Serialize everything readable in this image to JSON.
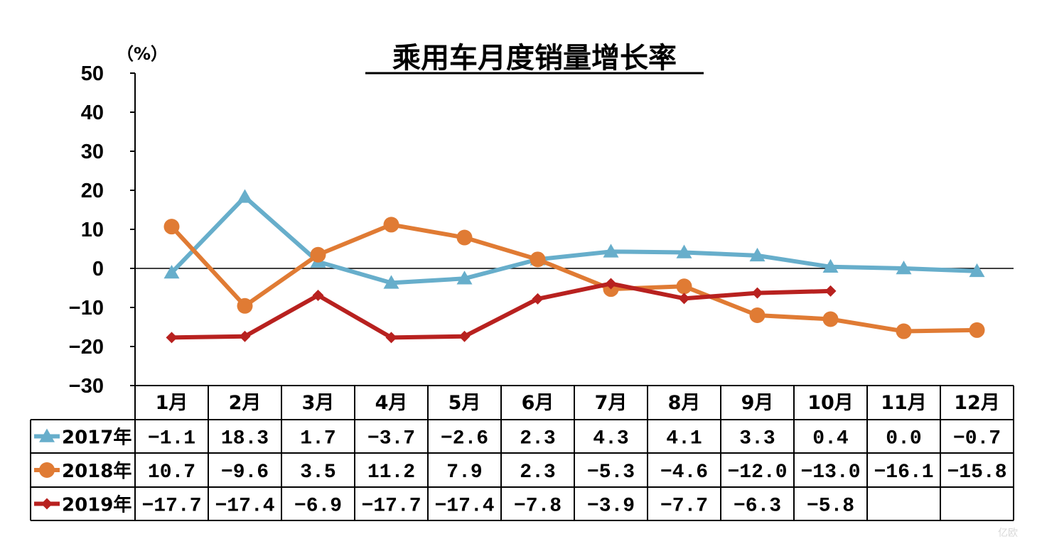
{
  "chart_data": {
    "type": "line",
    "title": "乘用车月度销量增长率",
    "y_unit": "（%）",
    "ylim": [
      -30,
      50
    ],
    "yticks": [
      50,
      40,
      30,
      20,
      10,
      0,
      -10,
      -20,
      -30
    ],
    "grid": false,
    "legend": "table-left",
    "categories": [
      "1月",
      "2月",
      "3月",
      "4月",
      "5月",
      "6月",
      "7月",
      "8月",
      "9月",
      "10月",
      "11月",
      "12月"
    ],
    "series": [
      {
        "name": "2017年",
        "color": "#67aecb",
        "marker": "triangle",
        "values": [
          -1.1,
          18.3,
          1.7,
          -3.7,
          -2.6,
          2.3,
          4.3,
          4.1,
          3.3,
          0.4,
          0.0,
          -0.7
        ],
        "labels": [
          "−1.1",
          "18.3",
          "1.7",
          "−3.7",
          "−2.6",
          "2.3",
          "4.3",
          "4.1",
          "3.3",
          "0.4",
          "0.0",
          "−0.7"
        ]
      },
      {
        "name": "2018年",
        "color": "#e07b34",
        "marker": "circle",
        "values": [
          10.7,
          -9.6,
          3.5,
          11.2,
          7.9,
          2.3,
          -5.3,
          -4.6,
          -12.0,
          -13.0,
          -16.1,
          -15.8
        ],
        "labels": [
          "10.7",
          "−9.6",
          "3.5",
          "11.2",
          "7.9",
          "2.3",
          "−5.3",
          "−4.6",
          "−12.0",
          "−13.0",
          "−16.1",
          "−15.8"
        ]
      },
      {
        "name": "2019年",
        "color": "#b8211f",
        "marker": "diamond",
        "values": [
          -17.7,
          -17.4,
          -6.9,
          -17.7,
          -17.4,
          -7.8,
          -3.9,
          -7.7,
          -6.3,
          -5.8,
          null,
          null
        ],
        "labels": [
          "−17.7",
          "−17.4",
          "−6.9",
          "−17.7",
          "−17.4",
          "−7.8",
          "−3.9",
          "−7.7",
          "−6.3",
          "−5.8",
          "",
          ""
        ]
      }
    ]
  },
  "watermark": "亿欧"
}
